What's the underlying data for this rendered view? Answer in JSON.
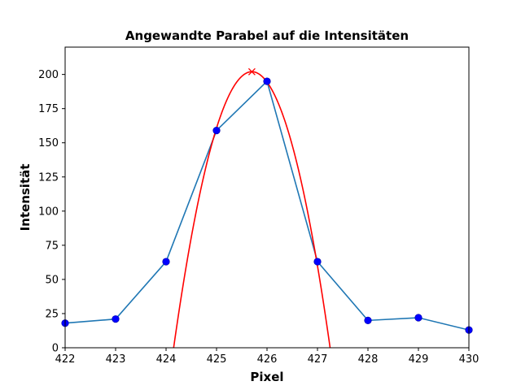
{
  "chart_data": {
    "type": "line",
    "title": "Angewandte Parabel auf die Intensitäten",
    "xlabel": "Pixel",
    "ylabel": "Intensität",
    "xlim": [
      422,
      430
    ],
    "ylim": [
      0,
      220
    ],
    "xticks": [
      "422",
      "423",
      "424",
      "425",
      "426",
      "427",
      "428",
      "429",
      "430"
    ],
    "yticks": [
      "0",
      "25",
      "50",
      "75",
      "100",
      "125",
      "150",
      "175",
      "200"
    ],
    "grid": false,
    "series": [
      {
        "kind": "line+markers",
        "color": "#1f77b4",
        "marker_color": "#0000ff",
        "x": [
          422,
          423,
          424,
          425,
          426,
          427,
          428,
          429,
          430
        ],
        "y": [
          18,
          21,
          63,
          159,
          195,
          63,
          20,
          22,
          13
        ]
      },
      {
        "kind": "parabola",
        "color": "#ff0000",
        "vertex": {
          "x": 425.7,
          "y": 202
        },
        "roots": [
          424.15,
          427.25
        ]
      },
      {
        "kind": "vertex-marker",
        "marker": "x",
        "color": "#ff0000",
        "x": [
          425.7
        ],
        "y": [
          202
        ]
      }
    ]
  }
}
